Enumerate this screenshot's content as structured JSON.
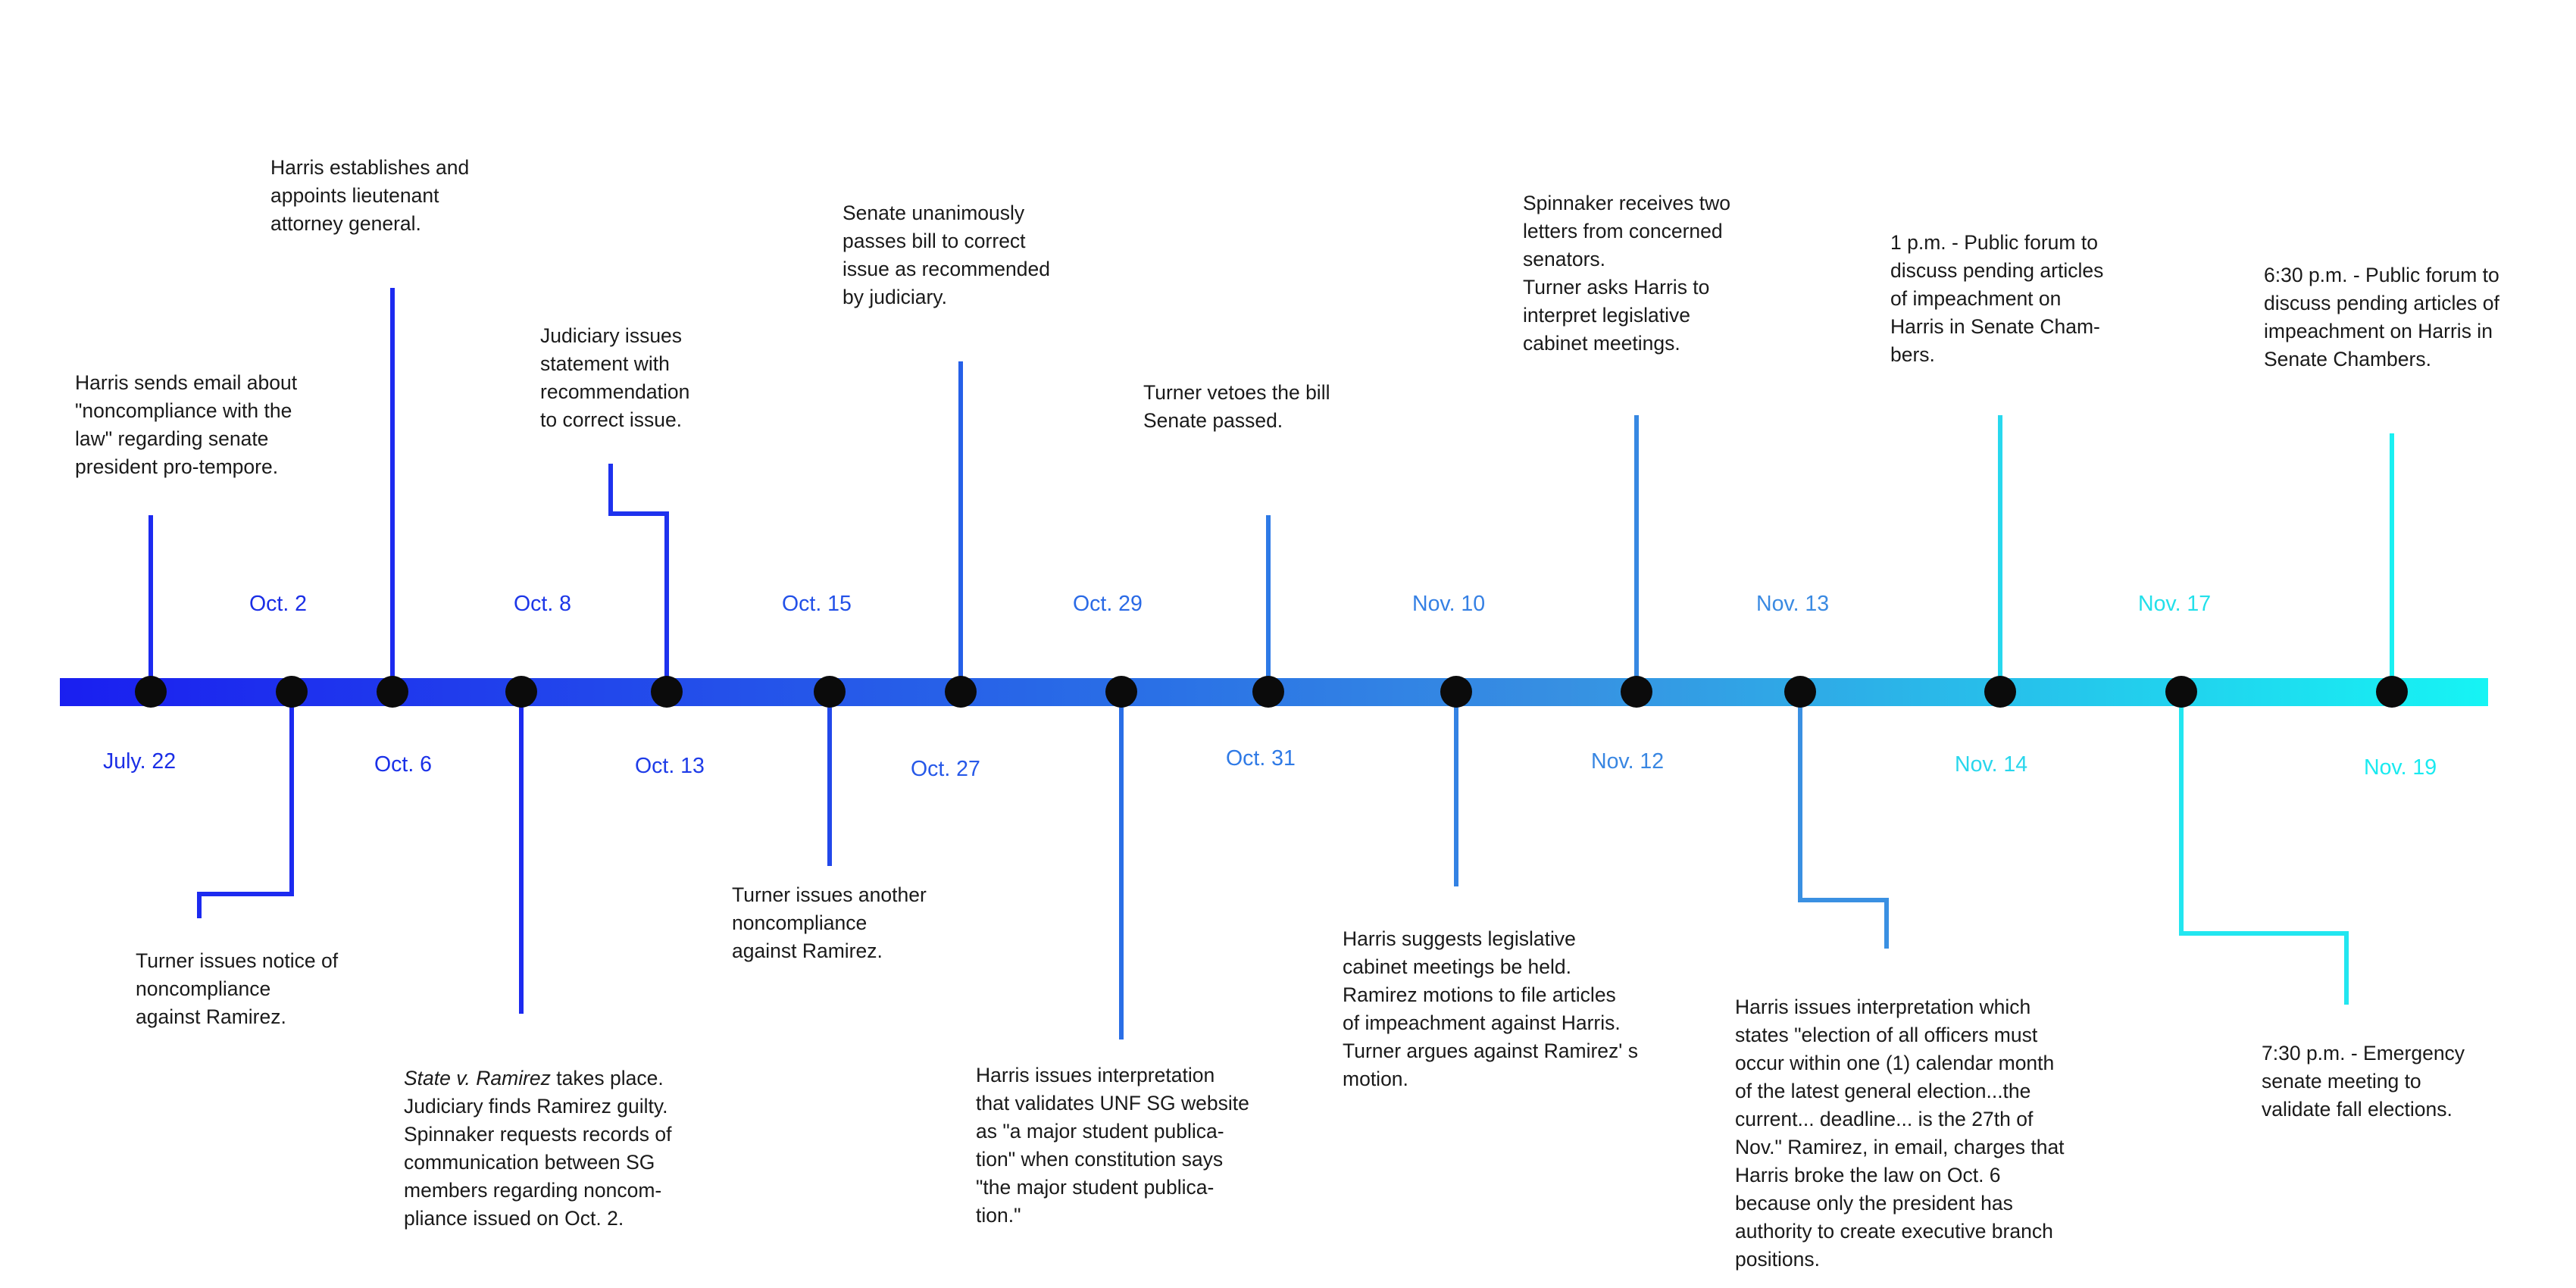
{
  "colors": {
    "bar_start": "#1a1ff0",
    "bar_mid": "#2f7de6",
    "bar_end": "#1af0f0",
    "dot": "#0b0b0b",
    "text": "#1a1a1a",
    "date_dark": "#1a2ee6",
    "date_mid": "#3a86e0",
    "date_light": "#22e0ea"
  },
  "dates_above": [
    "Oct. 2",
    "Oct. 8",
    "Oct. 15",
    "Oct. 29",
    "Nov. 10",
    "Nov. 13",
    "Nov. 17"
  ],
  "dates_below": [
    "July. 22",
    "Oct. 6",
    "Oct. 13",
    "Oct. 27",
    "Oct. 31",
    "Nov. 12",
    "Nov. 14",
    "Nov. 19"
  ],
  "events": [
    {
      "text": "Harris sends email about\n\"noncompliance with the\nlaw\" regarding senate\npresident pro-tempore."
    },
    {
      "text": "Turner issues notice of\nnoncompliance\nagainst Ramirez."
    },
    {
      "text": "Harris establishes and\nappoints lieutenant\nattorney general."
    },
    {
      "italic": "State v. Ramirez",
      "text": " takes place.\nJudiciary finds Ramirez guilty.\nSpinnaker requests records of\ncommunication between SG\nmembers regarding noncom-\npliance issued on Oct. 2."
    },
    {
      "text": "Judiciary issues\nstatement with\nrecommendation\nto correct issue."
    },
    {
      "text": "Turner issues another\nnoncompliance\nagainst Ramirez."
    },
    {
      "text": "Senate unanimously\npasses bill to correct\nissue as recommended\nby judiciary."
    },
    {
      "text": "Harris issues interpretation\nthat validates UNF SG website\nas \"a major student publica-\ntion\" when constitution says\n\"the major student publica-\ntion.\""
    },
    {
      "text": "Turner vetoes the bill\nSenate passed."
    },
    {
      "text": "Harris suggests legislative\ncabinet meetings be held.\nRamirez motions to file articles\nof impeachment against Harris.\nTurner argues against Ramirez' s\nmotion."
    },
    {
      "text": "Spinnaker receives two\nletters from concerned\nsenators.\nTurner asks Harris to\ninterpret legislative\ncabinet meetings."
    },
    {
      "text": "Harris issues interpretation which\nstates \"election of all officers must\noccur within one (1) calendar month\nof the latest general election...the\ncurrent... deadline... is the 27th of\nNov.\" Ramirez, in email, charges that\nHarris broke the law on Oct. 6\nbecause only the president has\nauthority to create executive branch\npositions."
    },
    {
      "text": "1 p.m. - Public forum to\ndiscuss pending articles\nof impeachment on\nHarris in Senate Cham-\nbers."
    },
    {
      "text": "7:30 p.m. - Emergency\nsenate meeting to\nvalidate fall elections."
    },
    {
      "text": "6:30 p.m. - Public forum to\ndiscuss pending articles of\nimpeachment on Harris in\nSenate Chambers."
    }
  ]
}
